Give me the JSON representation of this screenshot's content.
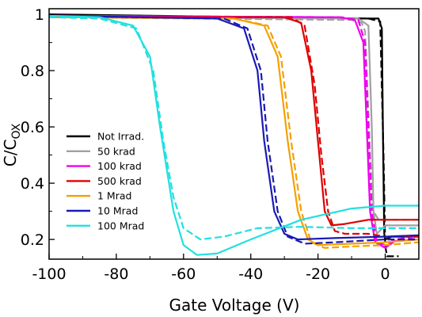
{
  "chart_data": {
    "type": "line",
    "title": "",
    "xlabel": "Gate Voltage (V)",
    "ylabel_main": "C/C",
    "ylabel_sub": "OX",
    "xlim": [
      -100,
      10
    ],
    "ylim": [
      0.13,
      1.02
    ],
    "xticks": [
      -100,
      -80,
      -60,
      -40,
      -20,
      0
    ],
    "yticks": [
      0.2,
      0.4,
      0.6,
      0.8,
      1
    ],
    "ytick_labels": [
      "0.2",
      "0.4",
      "0.6",
      "0.8",
      "1"
    ],
    "xtick_labels": [
      "-100",
      "-80",
      "-60",
      "-40",
      "-20",
      "0"
    ],
    "legend_position": "lower-left",
    "line_styles": [
      "solid",
      "dashed"
    ],
    "series": [
      {
        "name": "Not Irrad.",
        "color": "#000000",
        "solid": [
          [
            -100,
            1.0
          ],
          [
            -10,
            0.985
          ],
          [
            -2,
            0.985
          ],
          [
            -1,
            0.95
          ],
          [
            -0.6,
            0.5
          ],
          [
            -0.3,
            0.22
          ],
          [
            0,
            0.2
          ],
          [
            2,
            0.21
          ],
          [
            10,
            0.21
          ]
        ],
        "dashed": [
          [
            -100,
            0.995
          ],
          [
            -5,
            0.985
          ],
          [
            -1.5,
            0.975
          ],
          [
            -0.5,
            0.5
          ],
          [
            0,
            0.18
          ],
          [
            0.5,
            0.14
          ],
          [
            3,
            0.14
          ],
          [
            4,
            0.14
          ]
        ]
      },
      {
        "name": "50 krad",
        "color": "#a0a0a0",
        "solid": [
          [
            -100,
            0.99
          ],
          [
            -8,
            0.985
          ],
          [
            -5,
            0.96
          ],
          [
            -4,
            0.6
          ],
          [
            -3.5,
            0.3
          ],
          [
            -2.5,
            0.22
          ],
          [
            0,
            0.25
          ],
          [
            5,
            0.25
          ],
          [
            10,
            0.25
          ]
        ],
        "dashed": [
          [
            -100,
            0.99
          ],
          [
            -10,
            0.98
          ],
          [
            -7,
            0.97
          ],
          [
            -6,
            0.94
          ],
          [
            -4.5,
            0.5
          ],
          [
            -3.5,
            0.3
          ],
          [
            -2,
            0.27
          ],
          [
            5,
            0.27
          ],
          [
            10,
            0.27
          ]
        ]
      },
      {
        "name": "100 krad",
        "color": "#ee00ee",
        "solid": [
          [
            -100,
            0.995
          ],
          [
            -14,
            0.99
          ],
          [
            -9,
            0.98
          ],
          [
            -6.5,
            0.9
          ],
          [
            -5.5,
            0.6
          ],
          [
            -4.5,
            0.3
          ],
          [
            -3,
            0.19
          ],
          [
            0,
            0.17
          ],
          [
            3,
            0.195
          ],
          [
            10,
            0.2
          ]
        ],
        "dashed": [
          [
            -100,
            0.995
          ],
          [
            -13,
            0.99
          ],
          [
            -8,
            0.98
          ],
          [
            -6,
            0.9
          ],
          [
            -5,
            0.6
          ],
          [
            -4,
            0.3
          ],
          [
            -2.5,
            0.19
          ],
          [
            0,
            0.18
          ],
          [
            3,
            0.2
          ],
          [
            10,
            0.21
          ]
        ]
      },
      {
        "name": "500 krad",
        "color": "#e00000",
        "solid": [
          [
            -100,
            0.99
          ],
          [
            -30,
            0.99
          ],
          [
            -25,
            0.97
          ],
          [
            -22,
            0.8
          ],
          [
            -20,
            0.55
          ],
          [
            -18,
            0.3
          ],
          [
            -16,
            0.25
          ],
          [
            -12,
            0.255
          ],
          [
            -5,
            0.27
          ],
          [
            0,
            0.27
          ],
          [
            10,
            0.27
          ]
        ],
        "dashed": [
          [
            -100,
            0.99
          ],
          [
            -28,
            0.99
          ],
          [
            -24,
            0.96
          ],
          [
            -21,
            0.75
          ],
          [
            -19,
            0.5
          ],
          [
            -17,
            0.3
          ],
          [
            -15,
            0.23
          ],
          [
            -12,
            0.22
          ],
          [
            -5,
            0.22
          ],
          [
            0,
            0.21
          ],
          [
            10,
            0.21
          ]
        ]
      },
      {
        "name": "1 Mrad",
        "color": "#f5a000",
        "solid": [
          [
            -100,
            0.99
          ],
          [
            -45,
            0.985
          ],
          [
            -36,
            0.96
          ],
          [
            -32,
            0.85
          ],
          [
            -29,
            0.55
          ],
          [
            -26,
            0.3
          ],
          [
            -23,
            0.2
          ],
          [
            -20,
            0.18
          ],
          [
            -10,
            0.185
          ],
          [
            0,
            0.19
          ],
          [
            10,
            0.2
          ]
        ],
        "dashed": [
          [
            -100,
            0.99
          ],
          [
            -45,
            0.985
          ],
          [
            -35,
            0.96
          ],
          [
            -31,
            0.85
          ],
          [
            -28,
            0.55
          ],
          [
            -25,
            0.3
          ],
          [
            -22,
            0.19
          ],
          [
            -18,
            0.17
          ],
          [
            -10,
            0.175
          ],
          [
            0,
            0.18
          ],
          [
            10,
            0.19
          ]
        ]
      },
      {
        "name": "10 Mrad",
        "color": "#1a1ab4",
        "solid": [
          [
            -100,
            0.995
          ],
          [
            -50,
            0.985
          ],
          [
            -42,
            0.95
          ],
          [
            -38,
            0.8
          ],
          [
            -36,
            0.55
          ],
          [
            -33,
            0.3
          ],
          [
            -30,
            0.22
          ],
          [
            -26,
            0.2
          ],
          [
            -15,
            0.205
          ],
          [
            0,
            0.21
          ],
          [
            10,
            0.215
          ]
        ],
        "dashed": [
          [
            -100,
            0.995
          ],
          [
            -48,
            0.985
          ],
          [
            -41,
            0.95
          ],
          [
            -37,
            0.8
          ],
          [
            -35,
            0.55
          ],
          [
            -32,
            0.3
          ],
          [
            -29,
            0.21
          ],
          [
            -24,
            0.185
          ],
          [
            -15,
            0.19
          ],
          [
            0,
            0.2
          ],
          [
            10,
            0.2
          ]
        ]
      },
      {
        "name": "100 Mrad",
        "color": "#22e0e0",
        "solid": [
          [
            -100,
            0.995
          ],
          [
            -85,
            0.99
          ],
          [
            -75,
            0.96
          ],
          [
            -70,
            0.85
          ],
          [
            -67,
            0.6
          ],
          [
            -63,
            0.3
          ],
          [
            -60,
            0.18
          ],
          [
            -56,
            0.145
          ],
          [
            -50,
            0.15
          ],
          [
            -40,
            0.2
          ],
          [
            -25,
            0.27
          ],
          [
            -10,
            0.31
          ],
          [
            0,
            0.32
          ],
          [
            10,
            0.32
          ]
        ],
        "dashed": [
          [
            -100,
            0.99
          ],
          [
            -85,
            0.985
          ],
          [
            -74,
            0.95
          ],
          [
            -69,
            0.8
          ],
          [
            -66,
            0.55
          ],
          [
            -63,
            0.35
          ],
          [
            -60,
            0.24
          ],
          [
            -55,
            0.2
          ],
          [
            -48,
            0.21
          ],
          [
            -38,
            0.24
          ],
          [
            -25,
            0.245
          ],
          [
            -10,
            0.24
          ],
          [
            0,
            0.24
          ],
          [
            10,
            0.24
          ]
        ]
      }
    ]
  }
}
